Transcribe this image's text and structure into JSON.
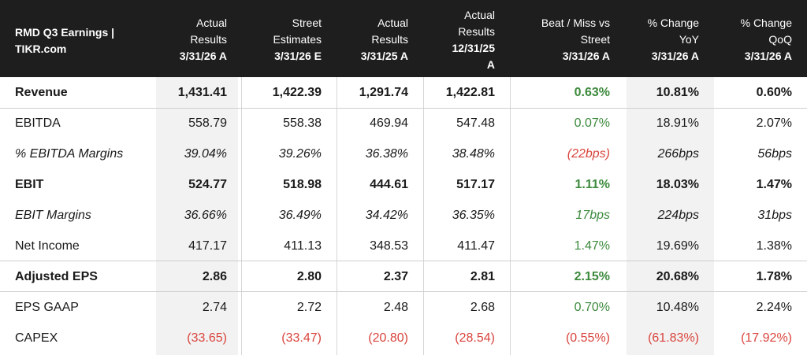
{
  "header": {
    "title": [
      "RMD Q3 Earnings |",
      "TIKR.com"
    ],
    "columns": [
      {
        "lines": [
          "Actual",
          "Results"
        ],
        "period": "3/31/26 A"
      },
      {
        "lines": [
          "Street",
          "Estimates"
        ],
        "period": "3/31/26 E"
      },
      {
        "lines": [
          "Actual",
          "Results"
        ],
        "period": "3/31/25 A"
      },
      {
        "lines": [
          "Actual",
          "Results"
        ],
        "period": "12/31/25",
        "period2": "A"
      },
      {
        "lines": [
          "Beat / Miss vs",
          "Street"
        ],
        "period": "3/31/26 A"
      },
      {
        "lines": [
          "% Change",
          "YoY"
        ],
        "period": "3/31/26 A"
      },
      {
        "lines": [
          "% Change",
          "QoQ"
        ],
        "period": "3/31/26 A"
      }
    ]
  },
  "rows": [
    {
      "label": "Revenue",
      "style": "bold",
      "values": [
        "1,431.41",
        "1,422.39",
        "1,291.74",
        "1,422.81",
        "0.63%",
        "10.81%",
        "0.60%"
      ]
    },
    {
      "label": "EBITDA",
      "style": "normal",
      "values": [
        "558.79",
        "558.38",
        "469.94",
        "547.48",
        "0.07%",
        "18.91%",
        "2.07%"
      ]
    },
    {
      "label": "% EBITDA Margins",
      "style": "italic",
      "values": [
        "39.04%",
        "39.26%",
        "36.38%",
        "38.48%",
        "(22bps)",
        "266bps",
        "56bps"
      ]
    },
    {
      "label": "EBIT",
      "style": "bold",
      "values": [
        "524.77",
        "518.98",
        "444.61",
        "517.17",
        "1.11%",
        "18.03%",
        "1.47%"
      ]
    },
    {
      "label": "EBIT Margins",
      "style": "italic",
      "values": [
        "36.66%",
        "36.49%",
        "34.42%",
        "36.35%",
        "17bps",
        "224bps",
        "31bps"
      ]
    },
    {
      "label": "Net Income",
      "style": "normal",
      "values": [
        "417.17",
        "411.13",
        "348.53",
        "411.47",
        "1.47%",
        "19.69%",
        "1.38%"
      ]
    },
    {
      "label": "Adjusted EPS",
      "style": "bold",
      "values": [
        "2.86",
        "2.80",
        "2.37",
        "2.81",
        "2.15%",
        "20.68%",
        "1.78%"
      ]
    },
    {
      "label": "EPS GAAP",
      "style": "normal",
      "values": [
        "2.74",
        "2.72",
        "2.48",
        "2.68",
        "0.70%",
        "10.48%",
        "2.24%"
      ]
    },
    {
      "label": "CAPEX",
      "style": "normal",
      "values": [
        "(33.65)",
        "(33.47)",
        "(20.80)",
        "(28.54)",
        "(0.55%)",
        "(61.83%)",
        "(17.92%)"
      ]
    }
  ],
  "colors": {
    "header_bg": "#1e1e1e",
    "positive": "#3d8a3d",
    "negative": "#d9443d",
    "shade": "#f2f2f2"
  }
}
